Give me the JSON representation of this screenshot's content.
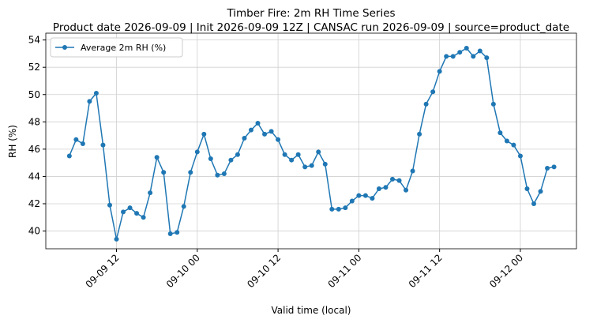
{
  "chart_data": {
    "type": "line",
    "title": "Timber Fire: 2m RH Time Series",
    "subtitle": "Product date 2026-09-09 | Init 2026-09-09 12Z | CANSAC run 2026-09-09 | source=product_date",
    "x_label": "Valid time (local)",
    "y_label": "RH (%)",
    "x": [
      "09-09 05",
      "09-09 06",
      "09-09 07",
      "09-09 08",
      "09-09 09",
      "09-09 10",
      "09-09 11",
      "09-09 12",
      "09-09 13",
      "09-09 14",
      "09-09 15",
      "09-09 16",
      "09-09 17",
      "09-09 18",
      "09-09 19",
      "09-09 20",
      "09-09 21",
      "09-09 22",
      "09-09 23",
      "09-10 00",
      "09-10 01",
      "09-10 02",
      "09-10 03",
      "09-10 04",
      "09-10 05",
      "09-10 06",
      "09-10 07",
      "09-10 08",
      "09-10 09",
      "09-10 10",
      "09-10 11",
      "09-10 12",
      "09-10 13",
      "09-10 14",
      "09-10 15",
      "09-10 16",
      "09-10 17",
      "09-10 18",
      "09-10 19",
      "09-10 20",
      "09-10 21",
      "09-10 22",
      "09-10 23",
      "09-11 00",
      "09-11 01",
      "09-11 02",
      "09-11 03",
      "09-11 04",
      "09-11 05",
      "09-11 06",
      "09-11 07",
      "09-11 08",
      "09-11 09",
      "09-11 10",
      "09-11 11",
      "09-11 12",
      "09-11 13",
      "09-11 14",
      "09-11 15",
      "09-11 16",
      "09-11 17",
      "09-11 18",
      "09-11 19",
      "09-11 20",
      "09-11 21",
      "09-11 22",
      "09-11 23",
      "09-12 00",
      "09-12 01",
      "09-12 02",
      "09-12 03",
      "09-12 04",
      "09-12 05"
    ],
    "series": [
      {
        "name": "Average 2m RH (%)",
        "color": "#1f77b4",
        "values": [
          45.5,
          46.7,
          46.4,
          49.5,
          50.1,
          46.3,
          41.9,
          39.4,
          41.4,
          41.7,
          41.3,
          41.0,
          42.8,
          45.4,
          44.3,
          39.8,
          39.9,
          41.8,
          44.3,
          45.8,
          47.1,
          45.3,
          44.1,
          44.2,
          45.2,
          45.6,
          46.8,
          47.4,
          47.9,
          47.1,
          47.3,
          46.7,
          45.6,
          45.2,
          45.6,
          44.7,
          44.8,
          45.8,
          44.9,
          41.6,
          41.6,
          41.7,
          42.2,
          42.6,
          42.6,
          42.4,
          43.1,
          43.2,
          43.8,
          43.7,
          43.0,
          44.4,
          47.1,
          49.3,
          50.2,
          51.7,
          52.8,
          52.8,
          53.1,
          53.4,
          52.8,
          53.2,
          52.7,
          49.3,
          47.2,
          46.6,
          46.3,
          45.5,
          43.1,
          42.0,
          42.9,
          44.6,
          44.7
        ]
      }
    ],
    "xlim": [
      "09-09 01:30",
      "09-12 08:20"
    ],
    "xticks": [
      "09-09 12",
      "09-10 00",
      "09-10 12",
      "09-11 00",
      "09-11 12",
      "09-12 00"
    ],
    "ylim": [
      38.7,
      54.5
    ],
    "yticks": [
      40,
      42,
      44,
      46,
      48,
      50,
      52,
      54
    ],
    "grid": true,
    "legend": "upper left"
  }
}
